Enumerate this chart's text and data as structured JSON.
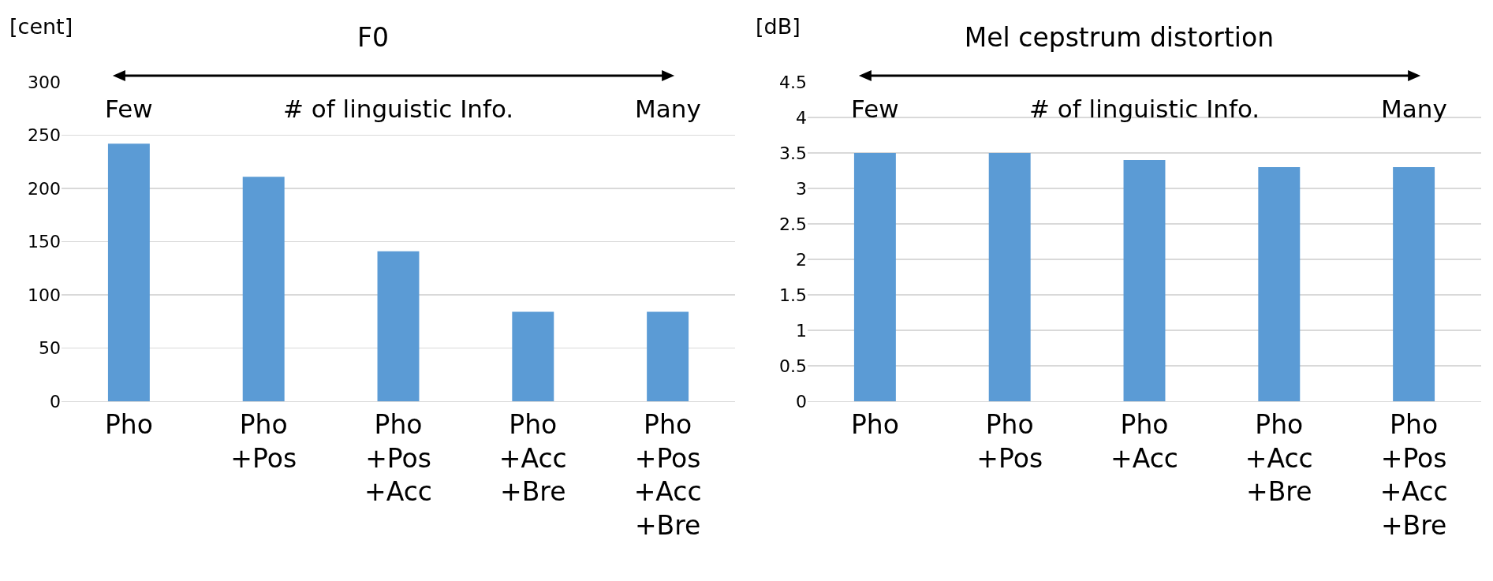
{
  "chart_data": [
    {
      "type": "bar",
      "title": "F0",
      "ylabel": "[cent]",
      "categories": [
        "Pho",
        "Pho\n+Pos",
        "Pho\n+Pos\n+Acc",
        "Pho\n+Acc\n+Bre",
        "Pho\n+Pos\n+Acc\n+Bre"
      ],
      "values": [
        242,
        211,
        141,
        84,
        84
      ],
      "color": "#5b9bd5",
      "ylim": [
        0,
        300
      ],
      "yticks": [
        0,
        50,
        100,
        150,
        200,
        250,
        300
      ],
      "grid": "y",
      "annotations": [
        "Few",
        "# of linguistic Info.",
        "Many"
      ]
    },
    {
      "type": "bar",
      "title": "Mel cepstrum distortion",
      "ylabel": "[dB]",
      "categories": [
        "Pho",
        "Pho\n+Pos",
        "Pho\n+Acc",
        "Pho\n+Acc\n+Bre",
        "Pho\n+Pos\n+Acc\n+Bre"
      ],
      "values": [
        3.5,
        3.5,
        3.4,
        3.3,
        3.3
      ],
      "color": "#5b9bd5",
      "ylim": [
        0,
        4.5
      ],
      "yticks": [
        0,
        0.5,
        1,
        1.5,
        2,
        2.5,
        3,
        3.5,
        4,
        4.5
      ],
      "grid": "y",
      "annotations": [
        "Few",
        "# of linguistic Info.",
        "Many"
      ]
    }
  ]
}
